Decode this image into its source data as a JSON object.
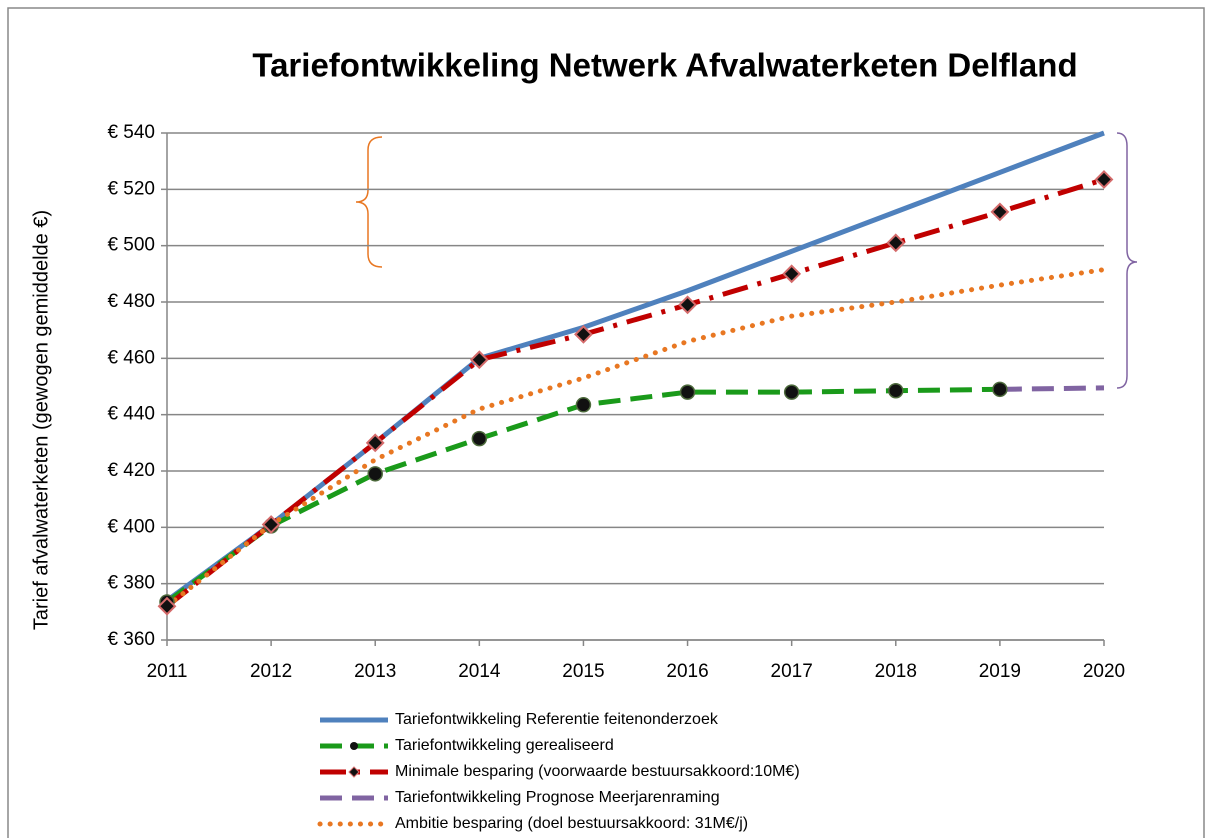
{
  "chart_data": {
    "type": "line",
    "title": "Tariefontwikkeling Netwerk Afvalwaterketen Delfland",
    "y_label": "Tarief afvalwaterketen (gewogen gemiddelde €)",
    "categories": [
      "2011",
      "2012",
      "2013",
      "2014",
      "2015",
      "2016",
      "2017",
      "2018",
      "2019",
      "2020"
    ],
    "ylim": [
      360,
      540
    ],
    "yticks": [
      {
        "value": 360,
        "label": "€ 360"
      },
      {
        "value": 380,
        "label": "€ 380"
      },
      {
        "value": 400,
        "label": "€ 400"
      },
      {
        "value": 420,
        "label": "€ 420"
      },
      {
        "value": 440,
        "label": "€ 440"
      },
      {
        "value": 460,
        "label": "€ 460"
      },
      {
        "value": 480,
        "label": "€ 480"
      },
      {
        "value": 500,
        "label": "€ 500"
      },
      {
        "value": 520,
        "label": "€ 520"
      },
      {
        "value": 540,
        "label": "€ 540"
      }
    ],
    "grid": true,
    "legend": "bottom",
    "series": [
      {
        "name": "Tariefontwikkeling Referentie feitenonderzoek",
        "color": "#4f81bd",
        "style": "solid",
        "marker": "none",
        "values": [
          374,
          401,
          430,
          460,
          471,
          484,
          498,
          512,
          526,
          540
        ]
      },
      {
        "name": "Tariefontwikkeling gerealiseerd",
        "color": "#1a9a1a",
        "style": "dashed",
        "marker": "circle",
        "values": [
          373.5,
          400.5,
          419,
          431.5,
          443.5,
          448,
          448,
          448.5,
          449,
          null
        ]
      },
      {
        "name": "Minimale besparing (voorwaarde bestuursakkoord:10M€)",
        "color": "#c00000",
        "style": "dashdot",
        "marker": "diamond",
        "values": [
          372,
          401,
          430,
          459.5,
          468.5,
          479,
          490,
          501,
          512,
          523.5
        ]
      },
      {
        "name": "Tariefontwikkeling Prognose Meerjarenraming",
        "color": "#8064a2",
        "style": "dashed",
        "marker": "none",
        "values": [
          null,
          null,
          null,
          null,
          null,
          null,
          null,
          null,
          449,
          449.5
        ]
      },
      {
        "name": "Ambitie besparing (doel bestuursakkoord: 31M€/j)",
        "color": "#e87722",
        "style": "dotted",
        "marker": "none",
        "values": [
          372,
          401,
          424,
          442,
          453,
          466,
          475,
          480,
          486,
          491.5
        ]
      }
    ]
  }
}
